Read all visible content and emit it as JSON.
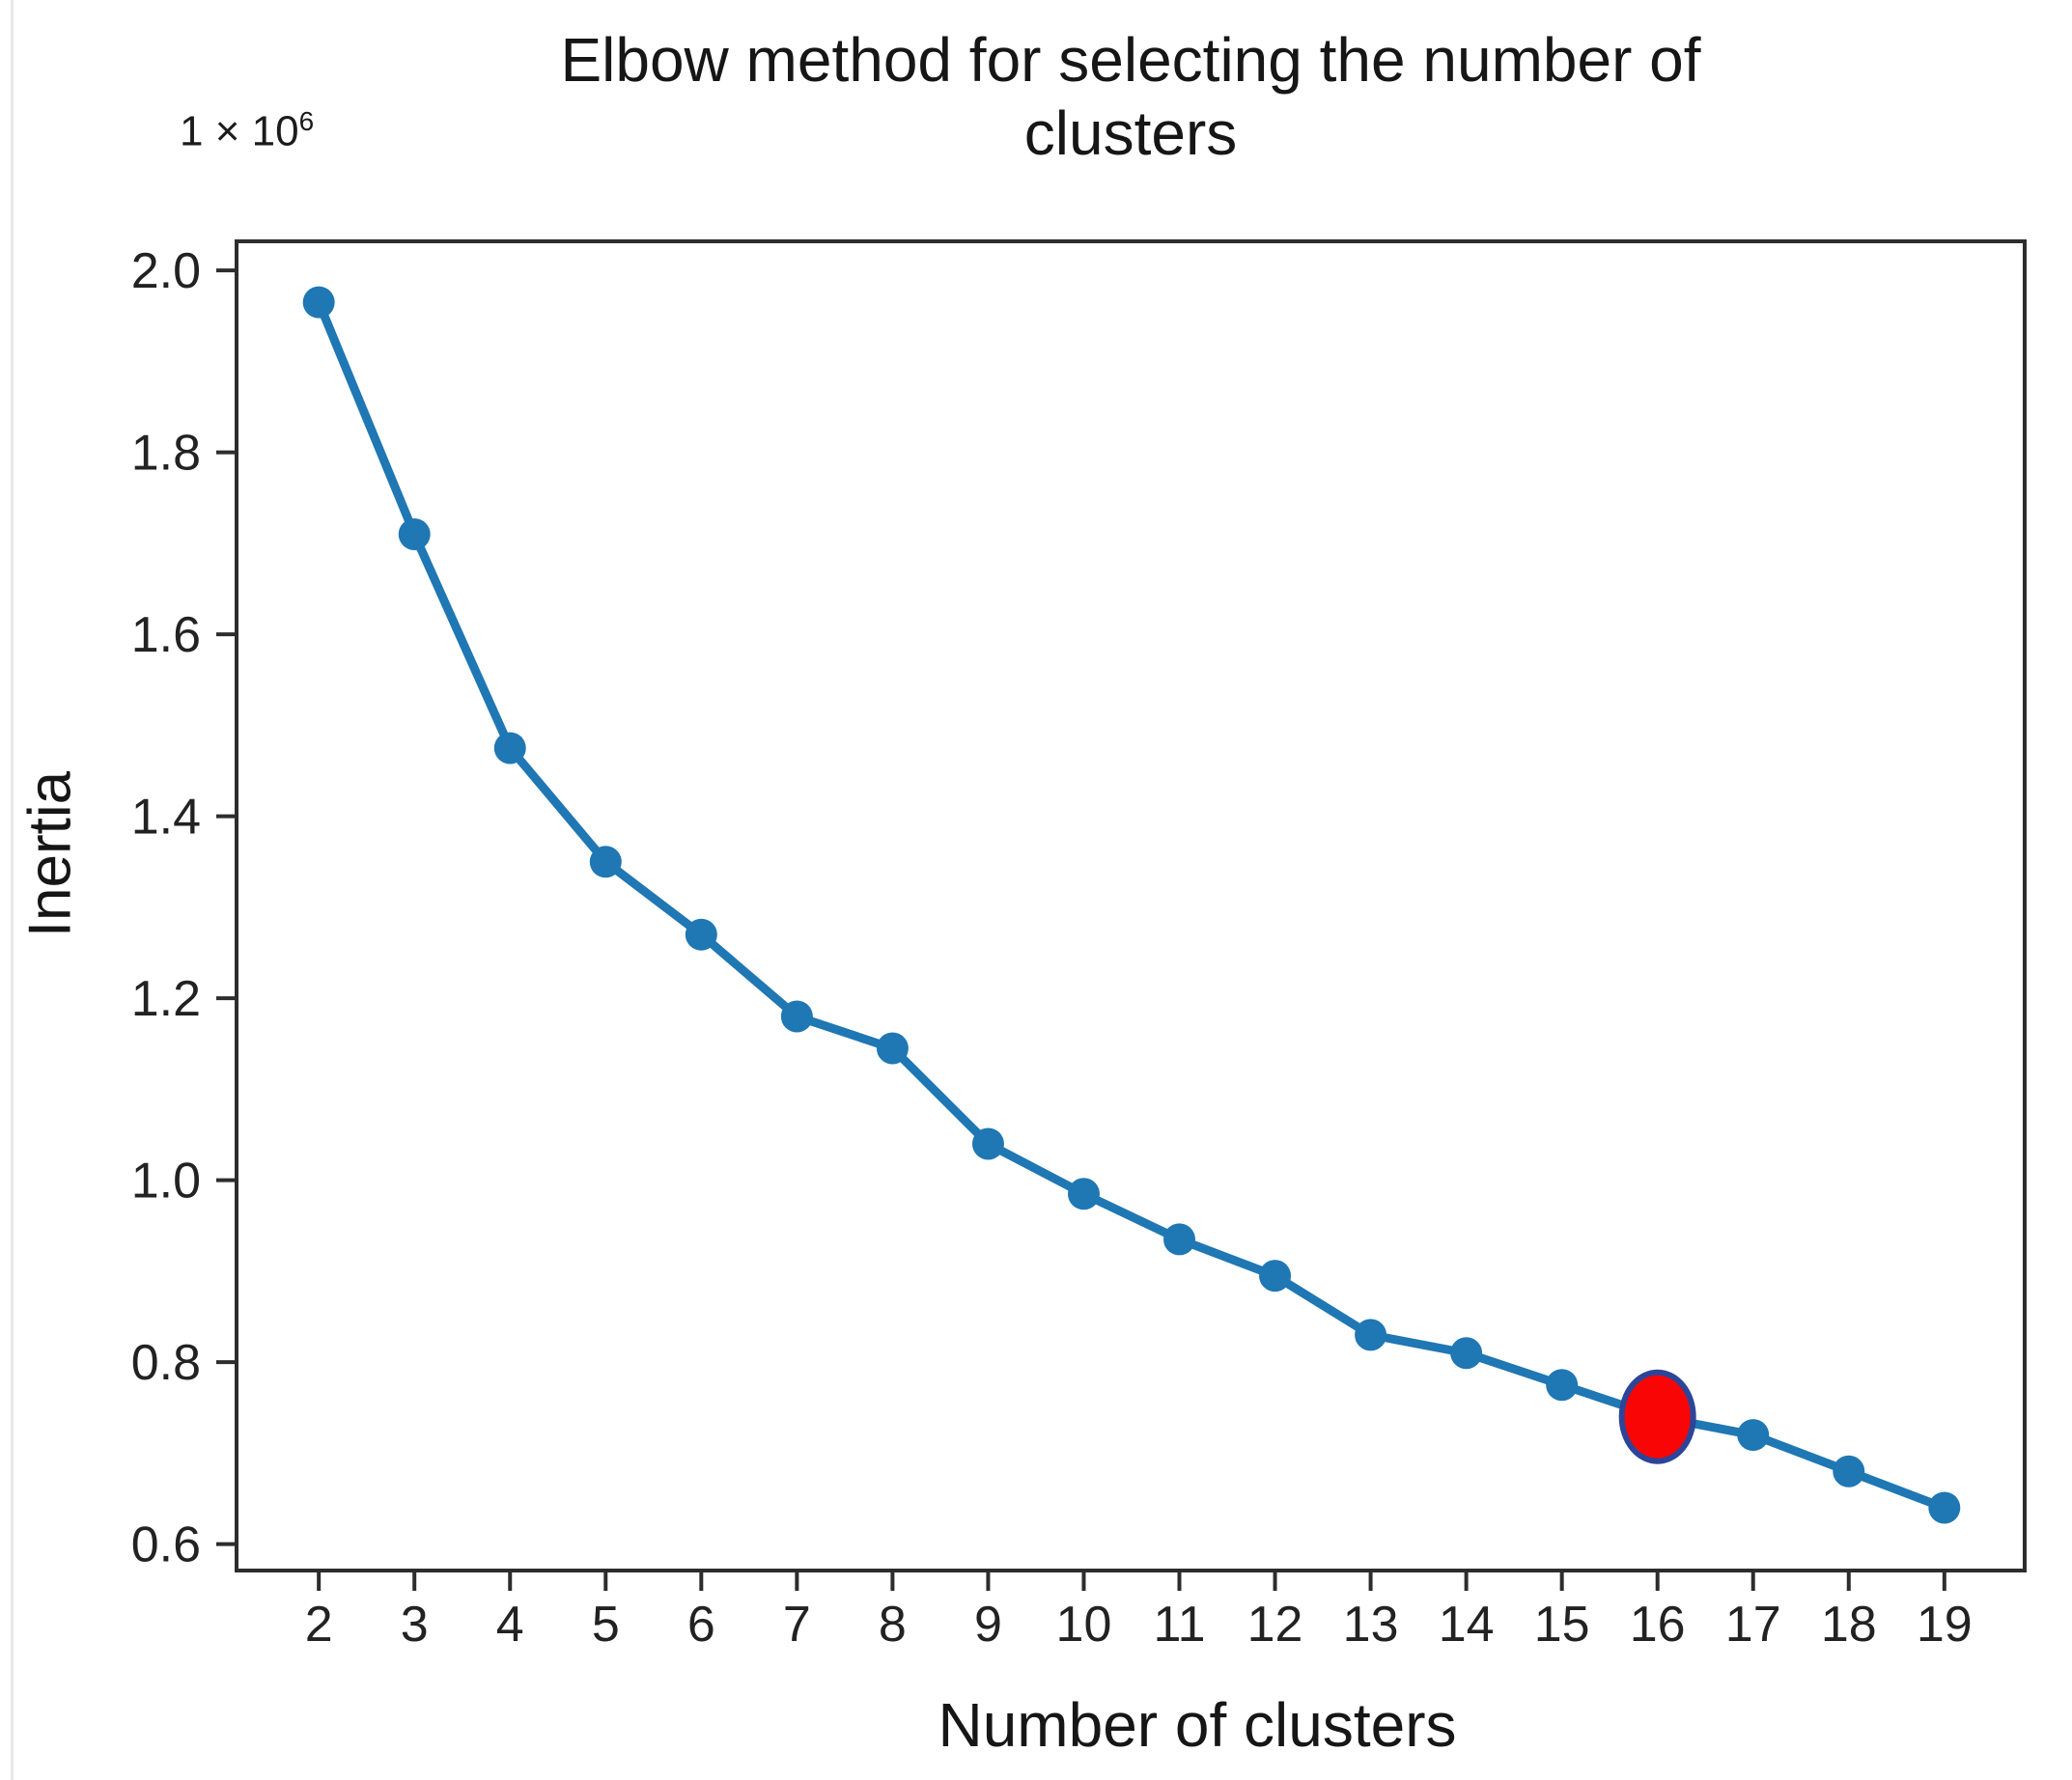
{
  "chart": {
    "title_lines": [
      "Elbow method for selecting the number of",
      "clusters"
    ],
    "offset_coefficient": "1 × 10",
    "offset_exponent": "6"
  },
  "chart_data": {
    "type": "line",
    "title": "Elbow method for selecting the number of clusters",
    "xlabel": "Number of clusters",
    "ylabel": "Inertia",
    "y_unit_multiplier_label": "1 × 10⁶",
    "x": [
      2,
      3,
      4,
      5,
      6,
      7,
      8,
      9,
      10,
      11,
      12,
      13,
      14,
      15,
      16,
      17,
      18,
      19
    ],
    "series": [
      {
        "name": "Inertia (×10⁶)",
        "values": [
          1.965,
          1.71,
          1.475,
          1.35,
          1.27,
          1.18,
          1.145,
          1.04,
          0.985,
          0.935,
          0.895,
          0.83,
          0.81,
          0.775,
          0.74,
          0.72,
          0.68,
          0.64
        ]
      }
    ],
    "highlight_point": {
      "x": 16,
      "y": 0.74,
      "fill": "#fa0505",
      "edge": "#2c4599"
    },
    "x_ticks": [
      2,
      3,
      4,
      5,
      6,
      7,
      8,
      9,
      10,
      11,
      12,
      13,
      14,
      15,
      16,
      17,
      18,
      19
    ],
    "y_ticks": [
      "0.6",
      "0.8",
      "1.0",
      "1.2",
      "1.4",
      "1.6",
      "1.8",
      "2.0"
    ],
    "xlim": [
      1.14,
      19.84
    ],
    "ylim": [
      0.571,
      2.032
    ],
    "grid": false,
    "legend": null,
    "line_color": "#1f77b4",
    "marker_color": "#1f77b4",
    "marker_radius": 16.5,
    "line_width": 9
  }
}
